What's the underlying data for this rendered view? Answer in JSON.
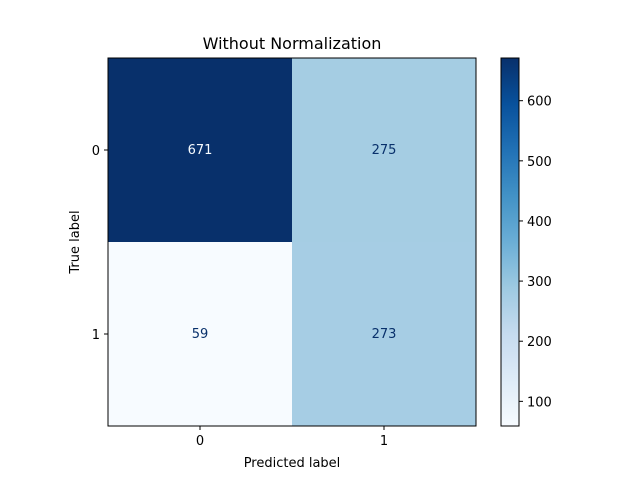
{
  "chart_data": {
    "type": "heatmap",
    "title": "Without Normalization",
    "xlabel": "Predicted label",
    "ylabel": "True label",
    "x_categories": [
      "0",
      "1"
    ],
    "y_categories": [
      "0",
      "1"
    ],
    "matrix": [
      [
        671,
        275
      ],
      [
        59,
        273
      ]
    ],
    "colormap": "Blues",
    "colorbar": {
      "range": [
        59,
        671
      ],
      "ticks": [
        100,
        200,
        300,
        400,
        500,
        600
      ]
    },
    "text_colors": {
      "on_dark": "#f7fbff",
      "on_light": "#08306b"
    }
  }
}
